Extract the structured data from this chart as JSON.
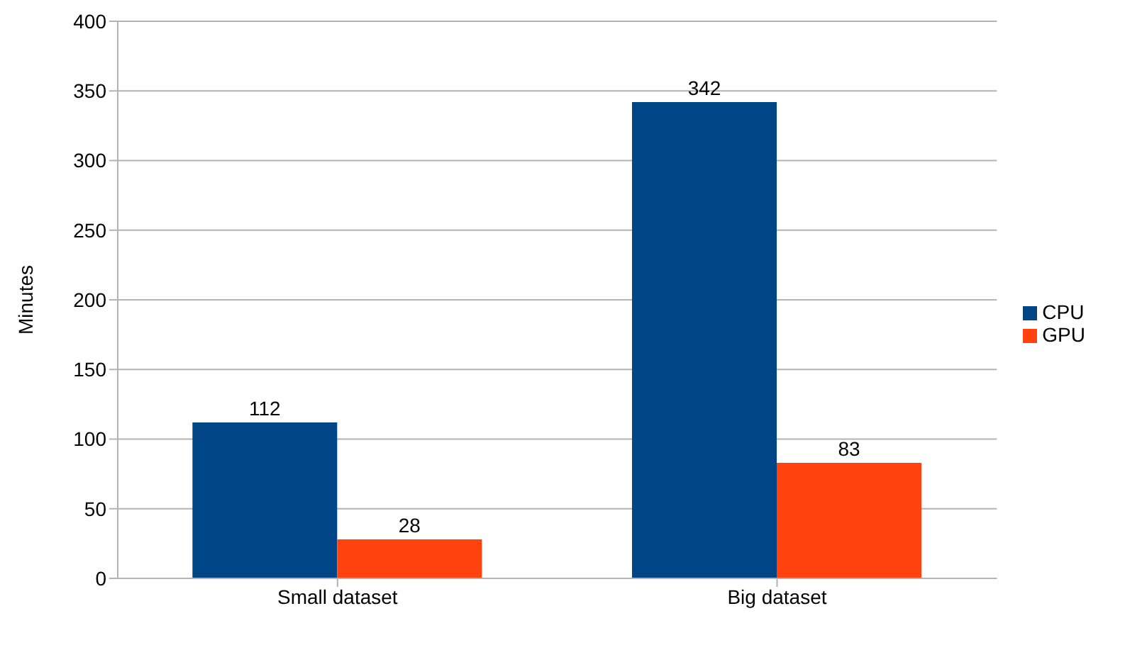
{
  "chart_data": {
    "type": "bar",
    "ylabel": "Minutes",
    "categories": [
      "Small dataset",
      "Big dataset"
    ],
    "series": [
      {
        "name": "CPU",
        "color": "#004586",
        "values": [
          112,
          342
        ]
      },
      {
        "name": "GPU",
        "color": "#ff420e",
        "values": [
          28,
          83
        ]
      }
    ],
    "ylim": [
      0,
      400
    ],
    "yticks": [
      0,
      50,
      100,
      150,
      200,
      250,
      300,
      350,
      400
    ],
    "grid": "y",
    "legend": "right",
    "data_labels": true
  }
}
